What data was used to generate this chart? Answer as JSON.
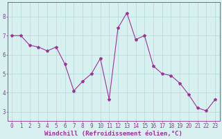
{
  "x": [
    0,
    1,
    2,
    3,
    4,
    5,
    6,
    7,
    8,
    9,
    10,
    11,
    12,
    13,
    14,
    15,
    16,
    17,
    18,
    19,
    20,
    21,
    22,
    23
  ],
  "y": [
    7.0,
    7.0,
    6.5,
    6.4,
    6.2,
    6.4,
    5.5,
    4.1,
    4.6,
    5.0,
    5.8,
    3.65,
    7.4,
    8.2,
    6.8,
    7.0,
    5.4,
    5.0,
    4.9,
    4.5,
    3.9,
    3.2,
    3.05,
    3.65
  ],
  "line_color": "#993399",
  "marker": "*",
  "marker_size": 3,
  "bg_color": "#d8f0f0",
  "grid_color": "#b0d8d8",
  "xlabel": "Windchill (Refroidissement éolien,°C)",
  "xlabel_fontsize": 6.5,
  "xlim": [
    -0.5,
    23.5
  ],
  "ylim": [
    2.5,
    8.75
  ],
  "yticks": [
    3,
    4,
    5,
    6,
    7,
    8
  ],
  "xticks": [
    0,
    1,
    2,
    3,
    4,
    5,
    6,
    7,
    8,
    9,
    10,
    11,
    12,
    13,
    14,
    15,
    16,
    17,
    18,
    19,
    20,
    21,
    22,
    23
  ],
  "tick_fontsize": 5.5,
  "axis_color": "#993399",
  "spine_color": "#993399"
}
